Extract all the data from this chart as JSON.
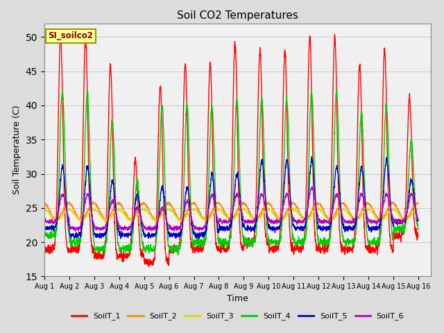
{
  "title": "Soil CO2 Temperatures",
  "xlabel": "Time",
  "ylabel": "Soil Temperature (C)",
  "ylim": [
    15,
    52
  ],
  "xlim": [
    0,
    15.5
  ],
  "annotation_text": "SI_soilco2",
  "annotation_color": "#8B0000",
  "annotation_bg": "#FFFF99",
  "annotation_border": "#999900",
  "colors": {
    "SoilT_1": "#FF0000",
    "SoilT_2": "#FF8800",
    "SoilT_3": "#DDDD00",
    "SoilT_4": "#00CC00",
    "SoilT_5": "#0000CC",
    "SoilT_6": "#BB00BB"
  },
  "grid_color": "#CCCCCC",
  "bg_color": "#DCDCDC",
  "plot_bg": "#F0F0F0",
  "yticks": [
    15,
    20,
    25,
    30,
    35,
    40,
    45,
    50
  ],
  "xtick_labels": [
    "Aug 1",
    "Aug 2",
    "Aug 3",
    "Aug 4",
    "Aug 5",
    "Aug 6",
    "Aug 7",
    "Aug 8",
    "Aug 9",
    "Aug 10",
    "Aug 11",
    "Aug 12",
    "Aug 13",
    "Aug 14",
    "Aug 15",
    "Aug 16"
  ],
  "days": 15,
  "points_per_day": 144,
  "figsize": [
    6.4,
    4.8
  ],
  "dpi": 100
}
